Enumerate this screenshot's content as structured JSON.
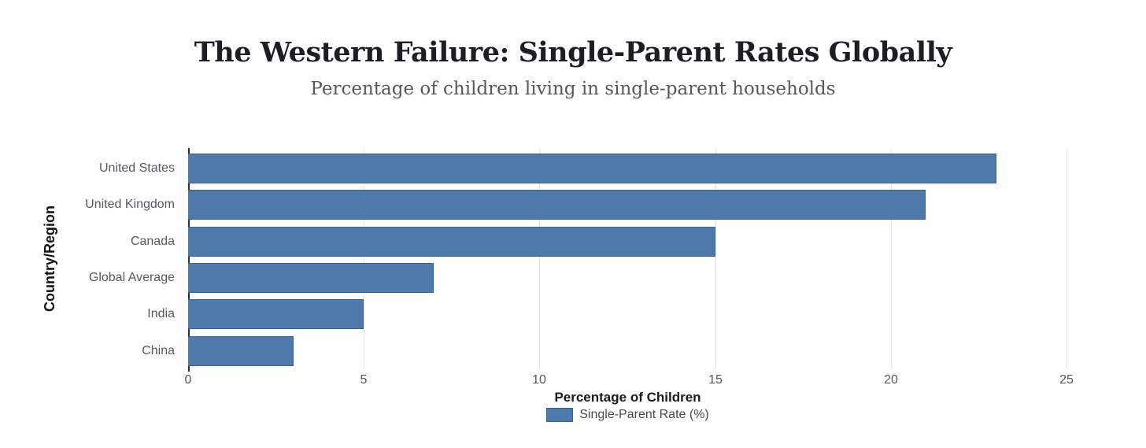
{
  "header": {
    "title": "The Western Failure: Single-Parent Rates Globally",
    "subtitle": "Percentage of children living in single-parent households"
  },
  "chart_data": {
    "type": "bar",
    "orientation": "horizontal",
    "title": "The Western Failure: Single-Parent Rates Globally",
    "subtitle": "Percentage of children living in single-parent households",
    "categories": [
      "United States",
      "United Kingdom",
      "Canada",
      "Global Average",
      "India",
      "China"
    ],
    "values": [
      23,
      21,
      15,
      7,
      5,
      3
    ],
    "series": [
      {
        "name": "Single-Parent Rate (%)",
        "values": [
          23,
          21,
          15,
          7,
          5,
          3
        ]
      }
    ],
    "xlabel": "Percentage of Children",
    "ylabel": "Country/Region",
    "xlim": [
      0,
      25
    ],
    "x_ticks": [
      0,
      5,
      10,
      15,
      20,
      25
    ],
    "grid": true,
    "legend_position": "bottom",
    "legend_label": "Single-Parent Rate (%)",
    "colors": {
      "bar_fill": "#4d7aab",
      "bar_border": "#35639a",
      "grid_line": "#e8e8e8",
      "axis_line": "#2f2f2f",
      "tick_label": "#54585e",
      "category_label": "#55595f",
      "axis_title": "#1a1a1a",
      "title": "#1b1f23",
      "subtitle": "#585858",
      "legend_text": "#45494e",
      "background": "#ffffff"
    }
  }
}
